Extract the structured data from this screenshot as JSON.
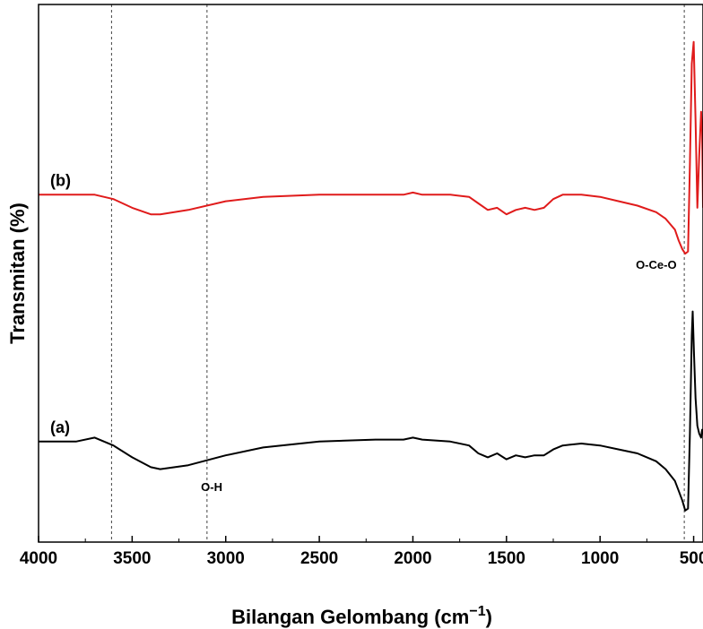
{
  "chart_data": {
    "type": "line",
    "title": "",
    "xlabel": "Bilangan Gelombang (cm",
    "xlabel_superscript": "−1",
    "xlabel_suffix": ")",
    "ylabel": "Transmitan (%)",
    "xlim": [
      4000,
      450
    ],
    "x_reversed": true,
    "y_ticks_shown": false,
    "grid": false,
    "x_ticks": [
      4000,
      3500,
      3000,
      2500,
      2000,
      1500,
      1000,
      500
    ],
    "x_tick_labels": [
      "4000",
      "3500",
      "3000",
      "2500",
      "2000",
      "1500",
      "1000",
      "500"
    ],
    "reference_lines_x": [
      3610,
      3100,
      550
    ],
    "annotations": [
      {
        "text": "O-H",
        "x": 3075
      },
      {
        "text": "O-Ce-O",
        "x": 700
      }
    ],
    "series": [
      {
        "name": "(a)",
        "color": "#000000",
        "offset": 0,
        "x": [
          4000,
          3800,
          3700,
          3600,
          3500,
          3400,
          3350,
          3200,
          3000,
          2800,
          2500,
          2200,
          2050,
          2000,
          1950,
          1800,
          1700,
          1650,
          1600,
          1550,
          1500,
          1450,
          1400,
          1350,
          1300,
          1250,
          1200,
          1100,
          1000,
          900,
          800,
          700,
          650,
          600,
          580,
          560,
          545,
          530,
          520,
          510,
          505,
          498,
          490,
          480,
          470,
          460,
          455,
          450
        ],
        "y": [
          63,
          63,
          64,
          62,
          59,
          56.5,
          56,
          57,
          59.5,
          61.5,
          63,
          63.5,
          63.5,
          64,
          63.5,
          63,
          62,
          60,
          59,
          60,
          58.5,
          59.5,
          59,
          59.5,
          59.5,
          61,
          62,
          62.5,
          62,
          61,
          60,
          58,
          56,
          53,
          50.5,
          48,
          45.5,
          46,
          65,
          90,
          96,
          85,
          74,
          67,
          65,
          64,
          66,
          65
        ]
      },
      {
        "name": "(b)",
        "color": "#e01b1b",
        "offset": 0,
        "x": [
          4000,
          3800,
          3700,
          3600,
          3500,
          3400,
          3350,
          3200,
          3000,
          2800,
          2500,
          2200,
          2050,
          2000,
          1950,
          1800,
          1700,
          1650,
          1600,
          1550,
          1500,
          1450,
          1400,
          1350,
          1300,
          1250,
          1200,
          1100,
          1000,
          900,
          800,
          700,
          650,
          600,
          580,
          560,
          545,
          530,
          520,
          510,
          500,
          490,
          480,
          470,
          460,
          455,
          450
        ],
        "y": [
          63,
          63,
          63,
          62,
          60,
          58.5,
          58.5,
          59.5,
          61.5,
          62.5,
          63,
          63,
          63,
          63.5,
          63,
          63,
          62.5,
          61,
          59.5,
          60,
          58.5,
          59.5,
          60,
          59.5,
          60,
          62,
          63,
          63,
          62.5,
          61.5,
          60.5,
          59,
          57.5,
          55,
          52.5,
          50.5,
          49.5,
          50,
          70,
          93,
          98,
          80,
          60,
          72,
          82,
          78,
          60
        ]
      }
    ]
  }
}
